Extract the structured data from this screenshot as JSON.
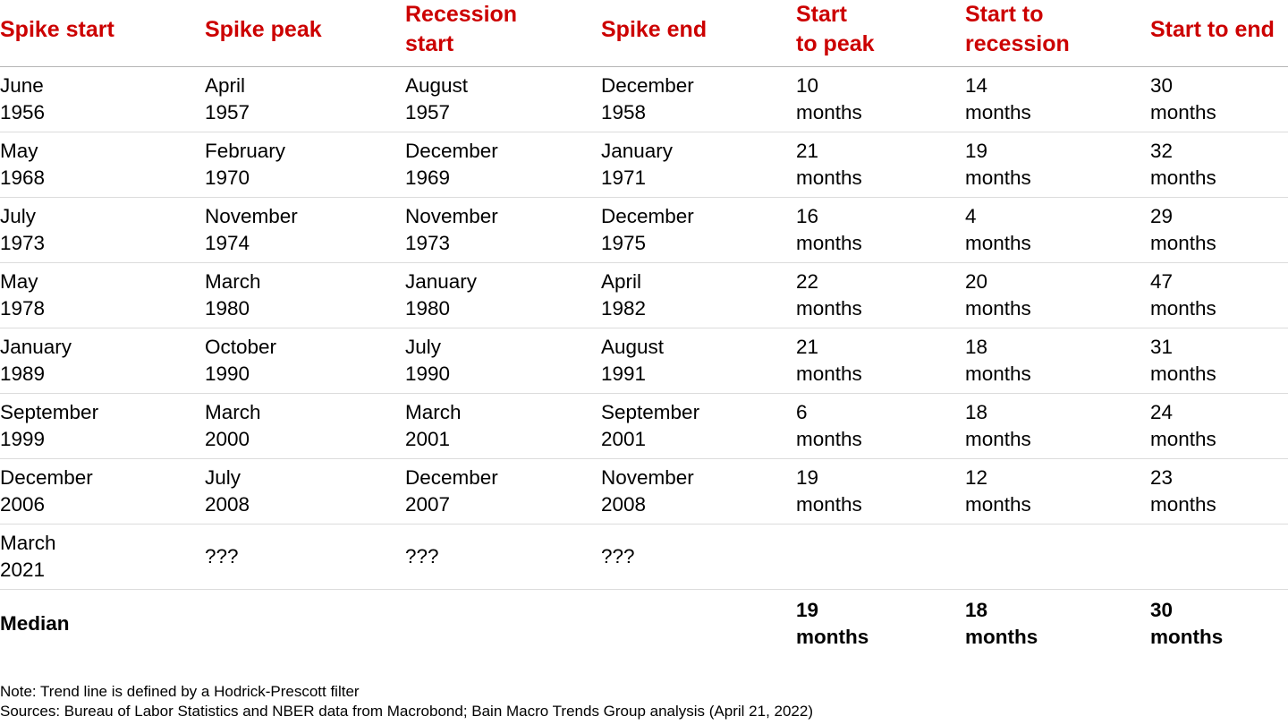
{
  "chart_data": {
    "type": "table",
    "columns": [
      "Spike start",
      "Spike peak",
      "Recession\nstart",
      "Spike end",
      "Start\nto peak",
      "Start to\nrecession",
      "Start to end"
    ],
    "rows": [
      [
        "June\n1956",
        "April\n1957",
        "August\n1957",
        "December\n1958",
        "10\nmonths",
        "14\nmonths",
        "30\nmonths"
      ],
      [
        "May\n1968",
        "February\n1970",
        "December\n1969",
        "January\n1971",
        "21\nmonths",
        "19\nmonths",
        "32\nmonths"
      ],
      [
        "July\n1973",
        "November\n1974",
        "November\n1973",
        "December\n1975",
        "16\nmonths",
        "4\nmonths",
        "29\nmonths"
      ],
      [
        "May\n1978",
        "March\n1980",
        "January\n1980",
        "April\n1982",
        "22\nmonths",
        "20\nmonths",
        "47\nmonths"
      ],
      [
        "January\n1989",
        "October\n1990",
        "July\n1990",
        "August\n1991",
        "21\nmonths",
        "18\nmonths",
        "31\nmonths"
      ],
      [
        "September\n1999",
        "March\n2000",
        "March\n2001",
        "September\n2001",
        "6\nmonths",
        "18\nmonths",
        "24\nmonths"
      ],
      [
        "December\n2006",
        "July\n2008",
        "December\n2007",
        "November\n2008",
        "19\nmonths",
        "12\nmonths",
        "23\nmonths"
      ],
      [
        "March\n2021",
        "???",
        "???",
        "???",
        "",
        "",
        ""
      ]
    ],
    "median_row": [
      "Median",
      "",
      "",
      "",
      "19\nmonths",
      "18\nmonths",
      "30\nmonths"
    ],
    "header_color": "#cc0000"
  },
  "footnotes": {
    "note": "Note: Trend line is defined by a Hodrick-Prescott filter",
    "sources": "Sources: Bureau of Labor Statistics and NBER data from Macrobond; Bain Macro Trends Group analysis (April 21, 2022)"
  }
}
